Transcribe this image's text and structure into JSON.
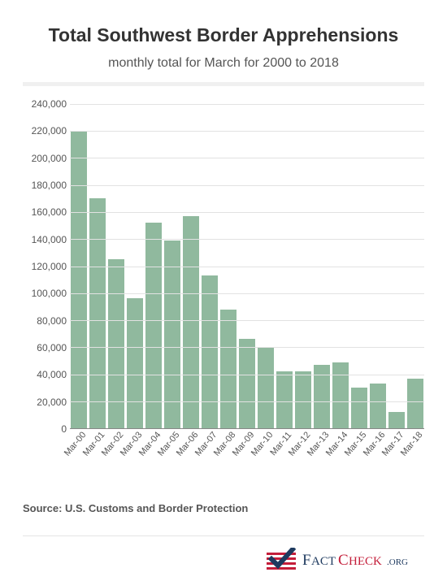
{
  "title": "Total Southwest Border Apprehensions",
  "subtitle": "monthly total for March for 2000 to 2018",
  "source": "Source: U.S. Customs and Border Protection",
  "chart": {
    "type": "bar",
    "bar_color": "#90b99e",
    "background_color": "#ffffff",
    "grid_color": "#e2e2e2",
    "axis_color": "#888888",
    "label_color": "#555555",
    "title_fontsize": 23,
    "subtitle_fontsize": 16,
    "tick_fontsize": 12,
    "ylim": [
      0,
      240000
    ],
    "ytick_step": 20000,
    "yticks": [
      {
        "value": 0,
        "label": "0"
      },
      {
        "value": 20000,
        "label": "20,000"
      },
      {
        "value": 40000,
        "label": "40,000"
      },
      {
        "value": 60000,
        "label": "60,000"
      },
      {
        "value": 80000,
        "label": "80,000"
      },
      {
        "value": 100000,
        "label": "100,000"
      },
      {
        "value": 120000,
        "label": "120,000"
      },
      {
        "value": 140000,
        "label": "140,000"
      },
      {
        "value": 160000,
        "label": "160,000"
      },
      {
        "value": 180000,
        "label": "180,000"
      },
      {
        "value": 200000,
        "label": "200,000"
      },
      {
        "value": 220000,
        "label": "220,000"
      },
      {
        "value": 240000,
        "label": "240,000"
      }
    ],
    "categories": [
      "Mar-00",
      "Mar-01",
      "Mar-02",
      "Mar-03",
      "Mar-04",
      "Mar-05",
      "Mar-06",
      "Mar-07",
      "Mar-08",
      "Mar-09",
      "Mar-10",
      "Mar-11",
      "Mar-12",
      "Mar-13",
      "Mar-14",
      "Mar-15",
      "Mar-16",
      "Mar-17",
      "Mar-18"
    ],
    "values": [
      220000,
      170000,
      125000,
      96000,
      152000,
      139000,
      157000,
      113000,
      88000,
      66000,
      60000,
      42000,
      42000,
      47000,
      49000,
      30000,
      33000,
      12000,
      37000
    ]
  },
  "logo": {
    "text_fact": "FACT",
    "text_check": "CHECK",
    "text_org": ".ORG",
    "red": "#c41e3a",
    "navy": "#1e3a5f"
  }
}
